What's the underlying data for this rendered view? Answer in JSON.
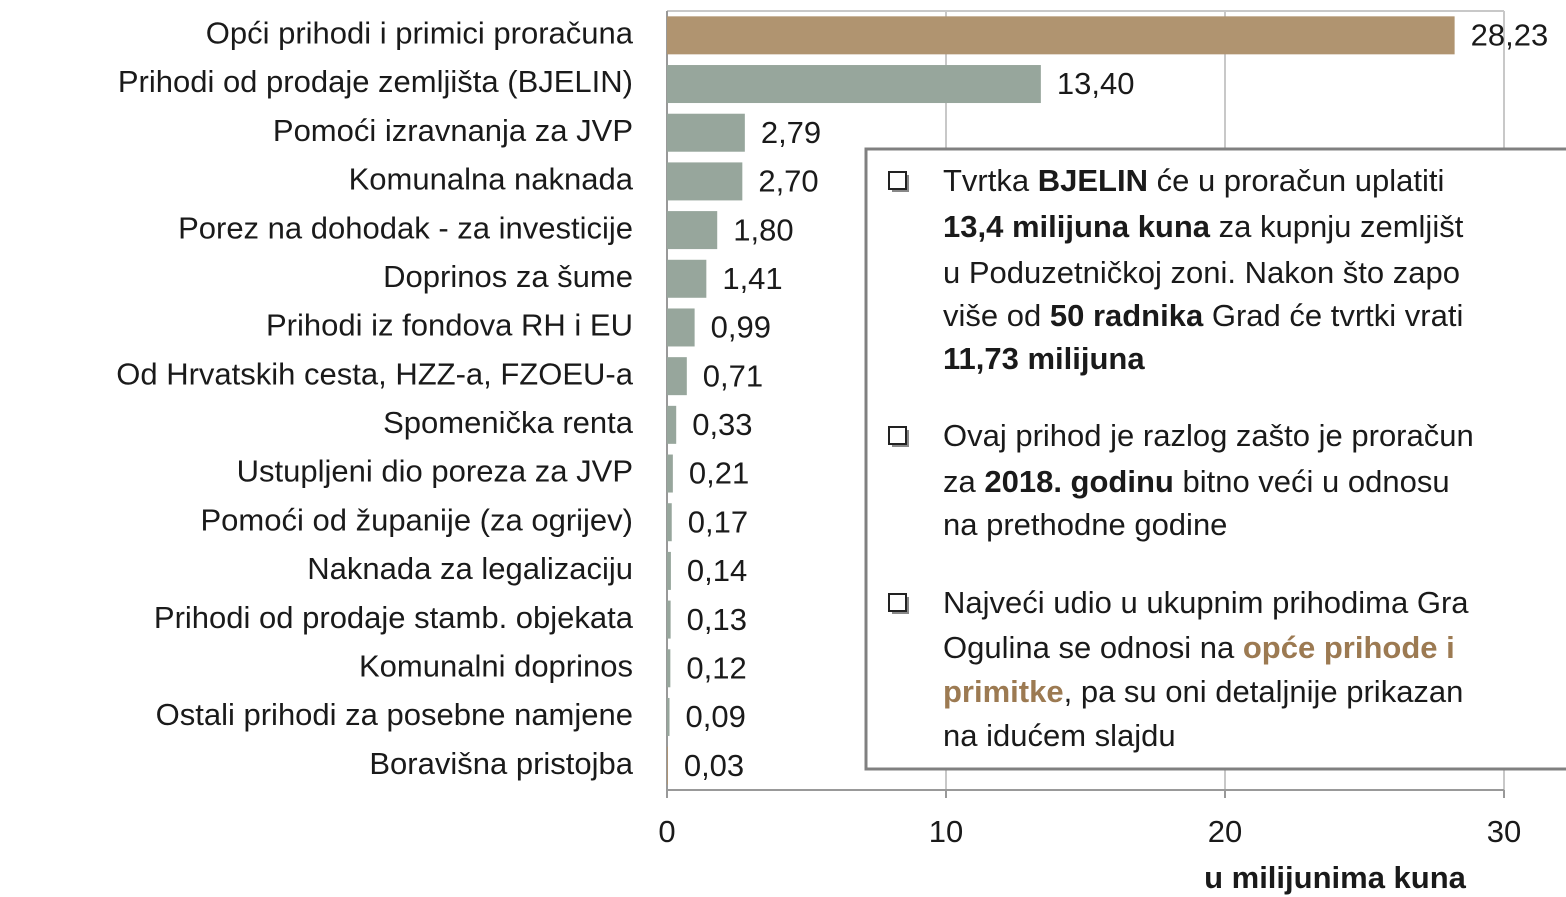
{
  "chart_data": {
    "type": "barh",
    "categories": [
      "Opći prihodi i primici proračuna",
      "Prihodi od prodaje zemljišta (BJELIN)",
      "Pomoći izravnanja za JVP",
      "Komunalna naknada",
      "Porez na dohodak - za investicije",
      "Doprinos za šume",
      "Prihodi iz fondova RH i EU",
      "Od Hrvatskih cesta, HZZ-a, FZOEU-a",
      "Spomenička renta",
      "Ustupljeni dio poreza za JVP",
      "Pomoći od županije (za ogrijev)",
      "Naknada za legalizaciju",
      "Prihodi od prodaje stamb. objekata",
      "Komunalni doprinos",
      "Ostali prihodi za posebne namjene",
      "Boravišna pristojba"
    ],
    "values": [
      28.23,
      13.4,
      2.79,
      2.7,
      1.8,
      1.41,
      0.99,
      0.71,
      0.33,
      0.21,
      0.17,
      0.14,
      0.13,
      0.12,
      0.09,
      0.03
    ],
    "value_labels": [
      "28,23",
      "13,40",
      "2,79",
      "2,70",
      "1,80",
      "1,41",
      "0,99",
      "0,71",
      "0,33",
      "0,21",
      "0,17",
      "0,14",
      "0,13",
      "0,12",
      "0,09",
      "0,03"
    ],
    "colors": [
      "#b09470",
      "#97a69c",
      "#97a69c",
      "#97a69c",
      "#97a69c",
      "#97a69c",
      "#97a69c",
      "#97a69c",
      "#97a69c",
      "#97a69c",
      "#97a69c",
      "#97a69c",
      "#97a69c",
      "#97a69c",
      "#97a69c",
      "#b09470"
    ],
    "xlim": [
      0,
      30
    ],
    "xticks": [
      0,
      10,
      20,
      30
    ],
    "grid": true,
    "x_label": "u milijunima kuna",
    "annotation": {
      "bullets": [
        {
          "lines": [
            [
              {
                "text": "Tvrtka "
              },
              {
                "text": "BJELIN",
                "bold": true
              },
              {
                "text": " će u proračun uplatiti"
              }
            ],
            [
              {
                "text": "13,4 milijuna kuna",
                "bold": true
              },
              {
                "text": " za kupnju zemljišt"
              }
            ],
            [
              {
                "text": "u Poduzetničkoj zoni. Nakon što zapo"
              }
            ],
            [
              {
                "text": "više od "
              },
              {
                "text": "50 radnika",
                "bold": true
              },
              {
                "text": " Grad će tvrtki vrati"
              }
            ],
            [
              {
                "text": "11,73 milijuna",
                "bold": true
              }
            ]
          ]
        },
        {
          "lines": [
            [
              {
                "text": "Ovaj prihod je razlog zašto je proračun"
              }
            ],
            [
              {
                "text": "za "
              },
              {
                "text": "2018. godinu",
                "bold": true
              },
              {
                "text": " bitno veći u odnosu"
              }
            ],
            [
              {
                "text": "na prethodne godine"
              }
            ]
          ]
        },
        {
          "lines": [
            [
              {
                "text": "Najveći udio u ukupnim prihodima Gra"
              }
            ],
            [
              {
                "text": "Ogulina se odnosi na "
              },
              {
                "text": "opće prihode i",
                "bold": true,
                "color": "#9c7a52"
              }
            ],
            [
              {
                "text": "primitke",
                "bold": true,
                "color": "#9c7a52"
              },
              {
                "text": ", pa su oni detaljnije prikazan"
              }
            ],
            [
              {
                "text": "na idućem slajdu"
              }
            ]
          ]
        }
      ]
    }
  }
}
